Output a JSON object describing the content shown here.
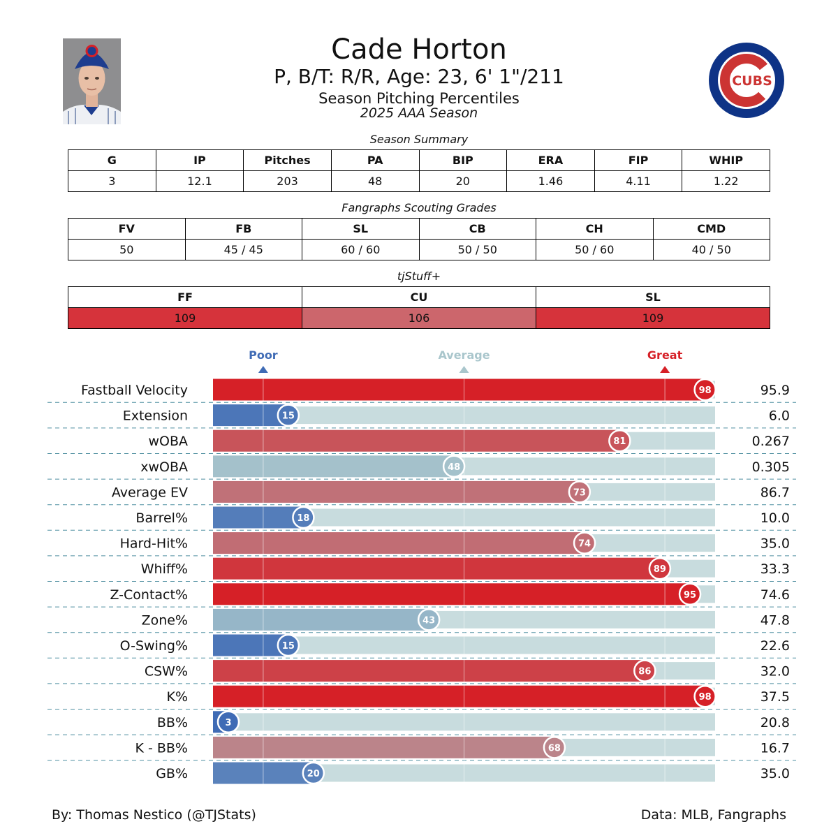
{
  "header": {
    "name": "Cade Horton",
    "bio": "P, B/T: R/R, Age: 23, 6' 1\"/211",
    "subtitle": "Season Pitching Percentiles",
    "season": "2025 AAA Season",
    "logo_text": "CUBS"
  },
  "summary": {
    "title": "Season Summary",
    "headers": [
      "G",
      "IP",
      "Pitches",
      "PA",
      "BIP",
      "ERA",
      "FIP",
      "WHIP"
    ],
    "values": [
      "3",
      "12.1",
      "203",
      "48",
      "20",
      "1.46",
      "4.11",
      "1.22"
    ]
  },
  "scouting": {
    "title": "Fangraphs Scouting Grades",
    "headers": [
      "FV",
      "FB",
      "SL",
      "CB",
      "CH",
      "CMD"
    ],
    "values": [
      "50",
      "45 / 45",
      "60 / 60",
      "50 / 50",
      "50 / 60",
      "40 / 50"
    ]
  },
  "stuff": {
    "title": "tjStuff+",
    "headers": [
      "FF",
      "CU",
      "SL"
    ],
    "values": [
      "109",
      "106",
      "109"
    ],
    "colors": [
      "#d6333b",
      "#cc666c",
      "#d6333b"
    ]
  },
  "colors": {
    "great": "#d62027",
    "poor": "#3f6bb5",
    "average": "#a9c6cc",
    "track": "#c8dcde"
  },
  "chart_data": {
    "type": "bar",
    "orientation": "horizontal",
    "title": "Season Pitching Percentiles",
    "xlim": [
      0,
      100
    ],
    "markers": [
      {
        "label": "Poor",
        "value": 10,
        "color": "#3f6bb5"
      },
      {
        "label": "Average",
        "value": 50,
        "color": "#a9c6cc"
      },
      {
        "label": "Great",
        "value": 90,
        "color": "#d62027"
      }
    ],
    "categories": [
      "Fastball Velocity",
      "Extension",
      "wOBA",
      "xwOBA",
      "Average EV",
      "Barrel%",
      "Hard-Hit%",
      "Whiff%",
      "Z-Contact%",
      "Zone%",
      "O-Swing%",
      "CSW%",
      "K%",
      "BB%",
      "K - BB%",
      "GB%"
    ],
    "percentiles": [
      98,
      15,
      81,
      48,
      73,
      18,
      74,
      89,
      95,
      43,
      15,
      86,
      98,
      3,
      68,
      20
    ],
    "stat_values": [
      "95.9",
      "6.0",
      "0.267",
      "0.305",
      "86.7",
      "10.0",
      "35.0",
      "33.3",
      "74.6",
      "47.8",
      "22.6",
      "32.0",
      "37.5",
      "20.8",
      "16.7",
      "35.0"
    ],
    "percentile_labels": [
      "98",
      "15",
      "81",
      "48",
      "73",
      "18",
      "74",
      "89",
      "95",
      "43",
      "15",
      "86",
      "98",
      "3",
      "68",
      "20"
    ]
  },
  "footer": {
    "credit": "By: Thomas Nestico (@TJStats)",
    "source": "Data: MLB, Fangraphs"
  }
}
